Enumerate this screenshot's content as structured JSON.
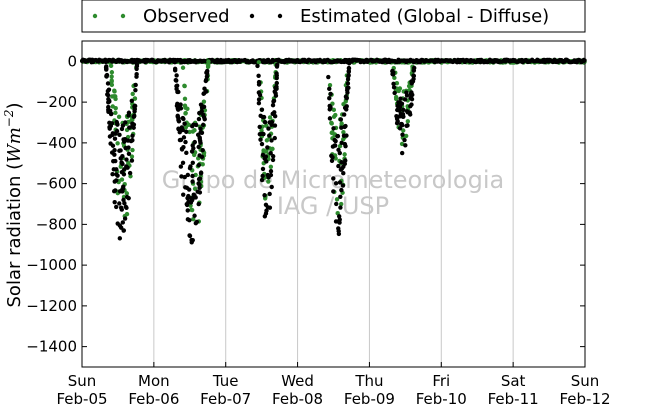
{
  "chart_data": {
    "type": "scatter",
    "title": "",
    "xlabel": "",
    "ylabel": "Solar radiation (Wm^-2)",
    "ylabel_parts": {
      "main": "Solar radiation (",
      "unit": "Wm",
      "exp": "−2",
      "close": ")"
    },
    "ylim": [
      -1500,
      100
    ],
    "yticks": [
      0,
      -200,
      -400,
      -600,
      -800,
      -1000,
      -1200,
      -1400
    ],
    "xlim": [
      0,
      7
    ],
    "xticks": [
      {
        "day": 0,
        "weekday": "Sun",
        "date": "Feb-05"
      },
      {
        "day": 1,
        "weekday": "Mon",
        "date": "Feb-06"
      },
      {
        "day": 2,
        "weekday": "Tue",
        "date": "Feb-07"
      },
      {
        "day": 3,
        "weekday": "Wed",
        "date": "Feb-08"
      },
      {
        "day": 4,
        "weekday": "Thu",
        "date": "Feb-09"
      },
      {
        "day": 5,
        "weekday": "Fri",
        "date": "Feb-10"
      },
      {
        "day": 6,
        "weekday": "Sat",
        "date": "Feb-11"
      },
      {
        "day": 7,
        "weekday": "Sun",
        "date": "Feb-12"
      }
    ],
    "grid": "x",
    "legend": {
      "placement": "top",
      "entries": [
        {
          "name": "Observed",
          "color": "#2e8b2e"
        },
        {
          "name": "Estimated (Global - Diffuse)",
          "color": "#000000"
        }
      ]
    },
    "watermark": [
      "Grupo de Micrometeorologia",
      "IAG / USP"
    ],
    "series": [
      {
        "name": "Observed",
        "color": "#2e8b2e",
        "days": [
          {
            "center": 0.58,
            "halfwidth": 0.18,
            "peak": -820,
            "count": 70
          },
          {
            "center": 1.58,
            "halfwidth": 0.18,
            "peak": -860,
            "count": 70
          },
          {
            "center": 2.58,
            "halfwidth": 0.12,
            "peak": -760,
            "count": 45
          },
          {
            "center": 3.57,
            "halfwidth": 0.13,
            "peak": -820,
            "count": 45
          },
          {
            "center": 4.47,
            "halfwidth": 0.14,
            "peak": -420,
            "count": 40
          }
        ]
      },
      {
        "name": "Estimated (Global - Diffuse)",
        "color": "#000000",
        "days": [
          {
            "center": 0.55,
            "halfwidth": 0.22,
            "peak": -880,
            "count": 130
          },
          {
            "center": 1.52,
            "halfwidth": 0.23,
            "peak": -890,
            "count": 130
          },
          {
            "center": 2.58,
            "halfwidth": 0.14,
            "peak": -830,
            "count": 70
          },
          {
            "center": 3.57,
            "halfwidth": 0.15,
            "peak": -850,
            "count": 75
          },
          {
            "center": 4.47,
            "halfwidth": 0.16,
            "peak": -460,
            "count": 60
          }
        ]
      }
    ]
  }
}
